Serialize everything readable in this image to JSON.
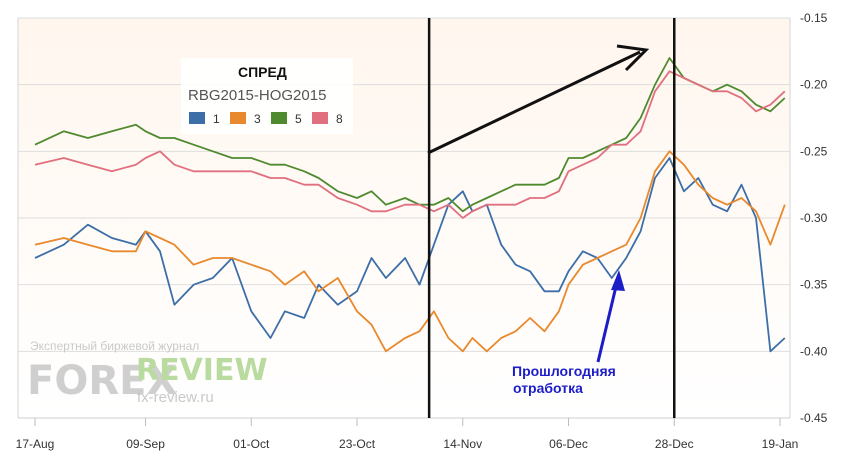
{
  "chart_data": {
    "type": "line",
    "legend": {
      "title": "СПРЕД",
      "subtitle": "RBG2015-HOG2015",
      "placement": "top-left"
    },
    "x_ticks": [
      "17-Aug",
      "09-Sep",
      "01-Oct",
      "23-Oct",
      "14-Nov",
      "06-Dec",
      "28-Dec",
      "19-Jan"
    ],
    "y_ticks": [
      "-0.15",
      "-0.20",
      "-0.25",
      "-0.30",
      "-0.35",
      "-0.40",
      "-0.45"
    ],
    "ylim": [
      -0.45,
      -0.15
    ],
    "grid": "horizontal",
    "series": [
      {
        "name": "1",
        "color": "#3c6ea8",
        "points": [
          [
            "17-Aug",
            -0.33
          ],
          [
            "23-Aug",
            -0.32
          ],
          [
            "28-Aug",
            -0.305
          ],
          [
            "02-Sep",
            -0.315
          ],
          [
            "07-Sep",
            -0.32
          ],
          [
            "09-Sep",
            -0.31
          ],
          [
            "12-Sep",
            -0.325
          ],
          [
            "15-Sep",
            -0.365
          ],
          [
            "19-Sep",
            -0.35
          ],
          [
            "23-Sep",
            -0.345
          ],
          [
            "27-Sep",
            -0.33
          ],
          [
            "01-Oct",
            -0.37
          ],
          [
            "05-Oct",
            -0.39
          ],
          [
            "08-Oct",
            -0.37
          ],
          [
            "12-Oct",
            -0.375
          ],
          [
            "15-Oct",
            -0.35
          ],
          [
            "19-Oct",
            -0.365
          ],
          [
            "23-Oct",
            -0.355
          ],
          [
            "26-Oct",
            -0.33
          ],
          [
            "29-Oct",
            -0.345
          ],
          [
            "02-Nov",
            -0.33
          ],
          [
            "05-Nov",
            -0.35
          ],
          [
            "08-Nov",
            -0.32
          ],
          [
            "11-Nov",
            -0.29
          ],
          [
            "14-Nov",
            -0.28
          ],
          [
            "16-Nov",
            -0.295
          ],
          [
            "19-Nov",
            -0.29
          ],
          [
            "22-Nov",
            -0.32
          ],
          [
            "25-Nov",
            -0.335
          ],
          [
            "28-Nov",
            -0.34
          ],
          [
            "01-Dec",
            -0.355
          ],
          [
            "04-Dec",
            -0.355
          ],
          [
            "06-Dec",
            -0.34
          ],
          [
            "09-Dec",
            -0.325
          ],
          [
            "12-Dec",
            -0.33
          ],
          [
            "15-Dec",
            -0.345
          ],
          [
            "18-Dec",
            -0.33
          ],
          [
            "21-Dec",
            -0.31
          ],
          [
            "24-Dec",
            -0.27
          ],
          [
            "27-Dec",
            -0.255
          ],
          [
            "30-Dec",
            -0.28
          ],
          [
            "02-Jan",
            -0.27
          ],
          [
            "05-Jan",
            -0.29
          ],
          [
            "08-Jan",
            -0.295
          ],
          [
            "11-Jan",
            -0.275
          ],
          [
            "14-Jan",
            -0.3
          ],
          [
            "17-Jan",
            -0.4
          ],
          [
            "20-Jan",
            -0.39
          ]
        ]
      },
      {
        "name": "3",
        "color": "#e8892e",
        "points": [
          [
            "17-Aug",
            -0.32
          ],
          [
            "23-Aug",
            -0.315
          ],
          [
            "28-Aug",
            -0.32
          ],
          [
            "02-Sep",
            -0.325
          ],
          [
            "07-Sep",
            -0.325
          ],
          [
            "09-Sep",
            -0.31
          ],
          [
            "12-Sep",
            -0.315
          ],
          [
            "15-Sep",
            -0.32
          ],
          [
            "19-Sep",
            -0.335
          ],
          [
            "23-Sep",
            -0.33
          ],
          [
            "27-Sep",
            -0.33
          ],
          [
            "01-Oct",
            -0.335
          ],
          [
            "05-Oct",
            -0.34
          ],
          [
            "08-Oct",
            -0.35
          ],
          [
            "12-Oct",
            -0.34
          ],
          [
            "15-Oct",
            -0.355
          ],
          [
            "19-Oct",
            -0.345
          ],
          [
            "23-Oct",
            -0.37
          ],
          [
            "26-Oct",
            -0.38
          ],
          [
            "29-Oct",
            -0.4
          ],
          [
            "02-Nov",
            -0.39
          ],
          [
            "05-Nov",
            -0.385
          ],
          [
            "08-Nov",
            -0.37
          ],
          [
            "11-Nov",
            -0.39
          ],
          [
            "14-Nov",
            -0.4
          ],
          [
            "16-Nov",
            -0.39
          ],
          [
            "19-Nov",
            -0.4
          ],
          [
            "22-Nov",
            -0.39
          ],
          [
            "25-Nov",
            -0.385
          ],
          [
            "28-Nov",
            -0.375
          ],
          [
            "01-Dec",
            -0.385
          ],
          [
            "04-Dec",
            -0.37
          ],
          [
            "06-Dec",
            -0.35
          ],
          [
            "09-Dec",
            -0.335
          ],
          [
            "12-Dec",
            -0.33
          ],
          [
            "15-Dec",
            -0.325
          ],
          [
            "18-Dec",
            -0.32
          ],
          [
            "21-Dec",
            -0.3
          ],
          [
            "24-Dec",
            -0.265
          ],
          [
            "27-Dec",
            -0.25
          ],
          [
            "30-Dec",
            -0.26
          ],
          [
            "02-Jan",
            -0.275
          ],
          [
            "05-Jan",
            -0.285
          ],
          [
            "08-Jan",
            -0.29
          ],
          [
            "11-Jan",
            -0.285
          ],
          [
            "14-Jan",
            -0.295
          ],
          [
            "17-Jan",
            -0.32
          ],
          [
            "20-Jan",
            -0.29
          ]
        ]
      },
      {
        "name": "5",
        "color": "#4f8a2f",
        "points": [
          [
            "17-Aug",
            -0.245
          ],
          [
            "23-Aug",
            -0.235
          ],
          [
            "28-Aug",
            -0.24
          ],
          [
            "02-Sep",
            -0.235
          ],
          [
            "07-Sep",
            -0.23
          ],
          [
            "09-Sep",
            -0.235
          ],
          [
            "12-Sep",
            -0.24
          ],
          [
            "15-Sep",
            -0.24
          ],
          [
            "19-Sep",
            -0.245
          ],
          [
            "23-Sep",
            -0.25
          ],
          [
            "27-Sep",
            -0.255
          ],
          [
            "01-Oct",
            -0.255
          ],
          [
            "05-Oct",
            -0.26
          ],
          [
            "08-Oct",
            -0.26
          ],
          [
            "12-Oct",
            -0.265
          ],
          [
            "15-Oct",
            -0.27
          ],
          [
            "19-Oct",
            -0.28
          ],
          [
            "23-Oct",
            -0.285
          ],
          [
            "26-Oct",
            -0.28
          ],
          [
            "29-Oct",
            -0.29
          ],
          [
            "02-Nov",
            -0.285
          ],
          [
            "05-Nov",
            -0.29
          ],
          [
            "08-Nov",
            -0.29
          ],
          [
            "11-Nov",
            -0.285
          ],
          [
            "14-Nov",
            -0.295
          ],
          [
            "16-Nov",
            -0.29
          ],
          [
            "19-Nov",
            -0.285
          ],
          [
            "22-Nov",
            -0.28
          ],
          [
            "25-Nov",
            -0.275
          ],
          [
            "28-Nov",
            -0.275
          ],
          [
            "01-Dec",
            -0.275
          ],
          [
            "04-Dec",
            -0.27
          ],
          [
            "06-Dec",
            -0.255
          ],
          [
            "09-Dec",
            -0.255
          ],
          [
            "12-Dec",
            -0.25
          ],
          [
            "15-Dec",
            -0.245
          ],
          [
            "18-Dec",
            -0.24
          ],
          [
            "21-Dec",
            -0.225
          ],
          [
            "24-Dec",
            -0.2
          ],
          [
            "27-Dec",
            -0.18
          ],
          [
            "30-Dec",
            -0.195
          ],
          [
            "02-Jan",
            -0.2
          ],
          [
            "05-Jan",
            -0.205
          ],
          [
            "08-Jan",
            -0.2
          ],
          [
            "11-Jan",
            -0.205
          ],
          [
            "14-Jan",
            -0.215
          ],
          [
            "17-Jan",
            -0.22
          ],
          [
            "20-Jan",
            -0.21
          ]
        ]
      },
      {
        "name": "8",
        "color": "#e0707f",
        "points": [
          [
            "17-Aug",
            -0.26
          ],
          [
            "23-Aug",
            -0.255
          ],
          [
            "28-Aug",
            -0.26
          ],
          [
            "02-Sep",
            -0.265
          ],
          [
            "07-Sep",
            -0.26
          ],
          [
            "09-Sep",
            -0.255
          ],
          [
            "12-Sep",
            -0.25
          ],
          [
            "15-Sep",
            -0.26
          ],
          [
            "19-Sep",
            -0.265
          ],
          [
            "23-Sep",
            -0.265
          ],
          [
            "27-Sep",
            -0.265
          ],
          [
            "01-Oct",
            -0.265
          ],
          [
            "05-Oct",
            -0.27
          ],
          [
            "08-Oct",
            -0.27
          ],
          [
            "12-Oct",
            -0.275
          ],
          [
            "15-Oct",
            -0.275
          ],
          [
            "19-Oct",
            -0.285
          ],
          [
            "23-Oct",
            -0.29
          ],
          [
            "26-Oct",
            -0.295
          ],
          [
            "29-Oct",
            -0.295
          ],
          [
            "02-Nov",
            -0.29
          ],
          [
            "05-Nov",
            -0.29
          ],
          [
            "08-Nov",
            -0.295
          ],
          [
            "11-Nov",
            -0.29
          ],
          [
            "14-Nov",
            -0.3
          ],
          [
            "16-Nov",
            -0.295
          ],
          [
            "19-Nov",
            -0.29
          ],
          [
            "22-Nov",
            -0.29
          ],
          [
            "25-Nov",
            -0.29
          ],
          [
            "28-Nov",
            -0.285
          ],
          [
            "01-Dec",
            -0.285
          ],
          [
            "04-Dec",
            -0.28
          ],
          [
            "06-Dec",
            -0.265
          ],
          [
            "09-Dec",
            -0.26
          ],
          [
            "12-Dec",
            -0.255
          ],
          [
            "15-Dec",
            -0.245
          ],
          [
            "18-Dec",
            -0.245
          ],
          [
            "21-Dec",
            -0.235
          ],
          [
            "24-Dec",
            -0.205
          ],
          [
            "27-Dec",
            -0.19
          ],
          [
            "30-Dec",
            -0.195
          ],
          [
            "02-Jan",
            -0.2
          ],
          [
            "05-Jan",
            -0.205
          ],
          [
            "08-Jan",
            -0.205
          ],
          [
            "11-Jan",
            -0.21
          ],
          [
            "14-Jan",
            -0.22
          ],
          [
            "17-Jan",
            -0.215
          ],
          [
            "20-Jan",
            -0.205
          ]
        ]
      }
    ],
    "annotations": {
      "note_line1": "Прошлогодняя",
      "note_line2": "отработка",
      "vertical_marker_dates": [
        "07-Nov",
        "28-Dec"
      ]
    }
  },
  "watermark": {
    "small": "Экспертный биржевой журнал",
    "forex": "FOREX",
    "review": "REVIEW",
    "url": "fx-review.ru"
  }
}
